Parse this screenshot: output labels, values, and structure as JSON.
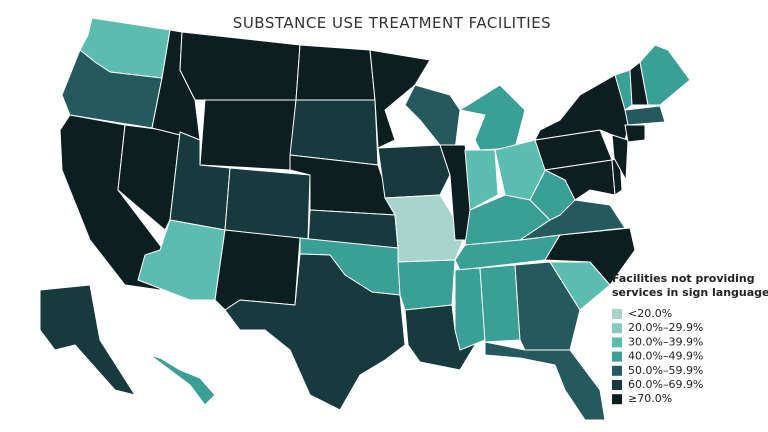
{
  "title": "SUBSTANCE USE TREATMENT FACILITIES",
  "legend": {
    "title_lines": [
      "Facilities not providing",
      "services in sign language"
    ],
    "items": [
      {
        "label": "<20.0%",
        "color": "#a9d4cc"
      },
      {
        "label": "20.0%–29.9%",
        "color": "#86cbbf"
      },
      {
        "label": "30.0%–39.9%",
        "color": "#5bbcb0"
      },
      {
        "label": "40.0%–49.9%",
        "color": "#3a9f97"
      },
      {
        "label": "50.0%–59.9%",
        "color": "#245a5d"
      },
      {
        "label": "60.0%–69.9%",
        "color": "#163a3d"
      },
      {
        "label": "≥70.0%",
        "color": "#0d1e20"
      }
    ]
  }
}
